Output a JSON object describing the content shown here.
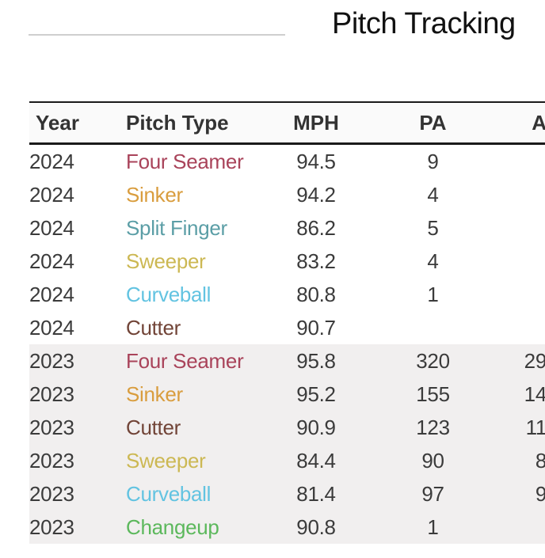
{
  "page": {
    "title": "Pitch Tracking"
  },
  "table": {
    "columns": {
      "year": "Year",
      "pitch_type": "Pitch Type",
      "mph": "MPH",
      "pa": "PA",
      "ab": "A"
    },
    "rows": [
      {
        "year": "2024",
        "pitch_type": "Four Seamer",
        "pitch_key": "four_seamer",
        "mph": "94.5",
        "pa": "9",
        "ab": "",
        "shaded": false
      },
      {
        "year": "2024",
        "pitch_type": "Sinker",
        "pitch_key": "sinker",
        "mph": "94.2",
        "pa": "4",
        "ab": "",
        "shaded": false
      },
      {
        "year": "2024",
        "pitch_type": "Split Finger",
        "pitch_key": "split_finger",
        "mph": "86.2",
        "pa": "5",
        "ab": "",
        "shaded": false
      },
      {
        "year": "2024",
        "pitch_type": "Sweeper",
        "pitch_key": "sweeper",
        "mph": "83.2",
        "pa": "4",
        "ab": "",
        "shaded": false
      },
      {
        "year": "2024",
        "pitch_type": "Curveball",
        "pitch_key": "curveball",
        "mph": "80.8",
        "pa": "1",
        "ab": "",
        "shaded": false
      },
      {
        "year": "2024",
        "pitch_type": "Cutter",
        "pitch_key": "cutter",
        "mph": "90.7",
        "pa": "",
        "ab": "",
        "shaded": false
      },
      {
        "year": "2023",
        "pitch_type": "Four Seamer",
        "pitch_key": "four_seamer",
        "mph": "95.8",
        "pa": "320",
        "ab": "29",
        "shaded": true
      },
      {
        "year": "2023",
        "pitch_type": "Sinker",
        "pitch_key": "sinker",
        "mph": "95.2",
        "pa": "155",
        "ab": "14",
        "shaded": true
      },
      {
        "year": "2023",
        "pitch_type": "Cutter",
        "pitch_key": "cutter",
        "mph": "90.9",
        "pa": "123",
        "ab": "11",
        "shaded": true
      },
      {
        "year": "2023",
        "pitch_type": "Sweeper",
        "pitch_key": "sweeper",
        "mph": "84.4",
        "pa": "90",
        "ab": "8",
        "shaded": true
      },
      {
        "year": "2023",
        "pitch_type": "Curveball",
        "pitch_key": "curveball",
        "mph": "81.4",
        "pa": "97",
        "ab": "9",
        "shaded": true
      },
      {
        "year": "2023",
        "pitch_type": "Changeup",
        "pitch_key": "changeup",
        "mph": "90.8",
        "pa": "1",
        "ab": "",
        "shaded": true
      }
    ]
  },
  "colors": {
    "four_seamer": "#a9435a",
    "sinker": "#d99d3e",
    "split_finger": "#5b9ea6",
    "sweeper": "#ccb853",
    "curveball": "#62c3e1",
    "cutter": "#714437",
    "changeup": "#5cb85c",
    "header_text": "#333333",
    "body_text": "#3b3b3b",
    "shaded_row_bg": "#f1efef",
    "header_bg": "#fafafa",
    "border": "#1a1a1a",
    "divider": "#cfcfcf"
  }
}
